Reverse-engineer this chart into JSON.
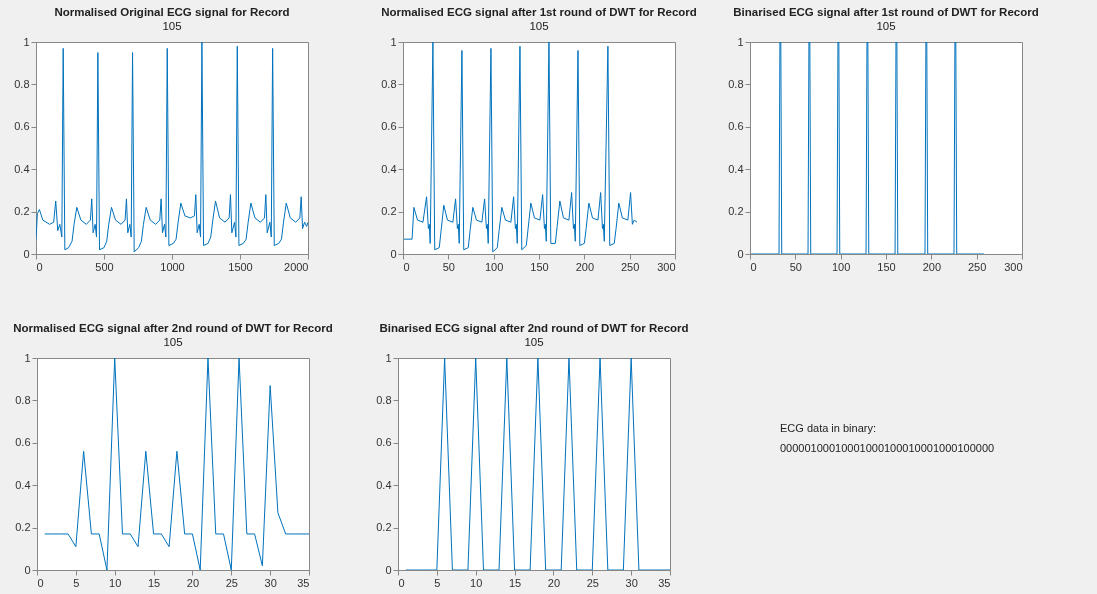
{
  "chart_data": [
    {
      "type": "line",
      "title": "Normalised Original ECG signal for Record",
      "subtitle": "105",
      "xlim": [
        0,
        2000
      ],
      "xticks": [
        0,
        500,
        1000,
        1500,
        2000
      ],
      "ylim": [
        0,
        1
      ],
      "yticks": [
        0,
        0.2,
        0.4,
        0.6,
        0.8,
        1
      ],
      "grid": false,
      "marker": "none",
      "line_style": "solid",
      "series": [
        {
          "color": "#0072bd",
          "x": [
            0,
            10,
            25,
            50,
            100,
            130,
            145,
            160,
            175,
            190,
            200,
            212,
            240,
            265,
            280,
            300,
            330,
            370,
            400,
            410,
            420,
            435,
            445,
            455,
            467,
            500,
            520,
            535,
            555,
            585,
            625,
            655,
            665,
            675,
            690,
            700,
            710,
            722,
            755,
            775,
            790,
            810,
            840,
            880,
            910,
            920,
            930,
            945,
            955,
            965,
            977,
            1010,
            1030,
            1045,
            1065,
            1095,
            1135,
            1165,
            1175,
            1185,
            1200,
            1210,
            1220,
            1232,
            1265,
            1285,
            1300,
            1320,
            1350,
            1390,
            1420,
            1430,
            1440,
            1460,
            1470,
            1480,
            1492,
            1525,
            1545,
            1560,
            1580,
            1610,
            1650,
            1680,
            1690,
            1700,
            1720,
            1730,
            1740,
            1752,
            1785,
            1805,
            1820,
            1840,
            1870,
            1910,
            1940,
            1950,
            1960,
            1975,
            1990,
            2000
          ],
          "values": [
            0.07,
            0.19,
            0.21,
            0.16,
            0.14,
            0.15,
            0.25,
            0.11,
            0.14,
            0.08,
            0.97,
            0.02,
            0.03,
            0.06,
            0.14,
            0.22,
            0.16,
            0.14,
            0.16,
            0.26,
            0.1,
            0.14,
            0.08,
            0.95,
            0.02,
            0.03,
            0.06,
            0.14,
            0.22,
            0.16,
            0.14,
            0.16,
            0.26,
            0.1,
            0.14,
            0.08,
            0.95,
            0.01,
            0.03,
            0.06,
            0.14,
            0.22,
            0.16,
            0.14,
            0.16,
            0.26,
            0.1,
            0.14,
            0.08,
            0.97,
            0.04,
            0.05,
            0.07,
            0.15,
            0.24,
            0.18,
            0.17,
            0.18,
            0.28,
            0.1,
            0.14,
            0.08,
            1.0,
            0.04,
            0.05,
            0.08,
            0.16,
            0.25,
            0.17,
            0.15,
            0.17,
            0.28,
            0.1,
            0.15,
            0.08,
            0.98,
            0.04,
            0.05,
            0.07,
            0.15,
            0.24,
            0.17,
            0.15,
            0.17,
            0.28,
            0.1,
            0.15,
            0.08,
            0.97,
            0.04,
            0.05,
            0.07,
            0.15,
            0.24,
            0.17,
            0.15,
            0.17,
            0.27,
            0.12,
            0.15,
            0.13,
            0.15
          ]
        }
      ]
    },
    {
      "type": "line",
      "title": "Normalised ECG signal after 1st round of DWT for Record",
      "subtitle": "105",
      "xlim": [
        0,
        300
      ],
      "xticks": [
        0,
        50,
        100,
        150,
        200,
        250,
        300
      ],
      "ylim": [
        0,
        1
      ],
      "yticks": [
        0,
        0.2,
        0.4,
        0.6,
        0.8,
        1
      ],
      "grid": false,
      "marker": "none",
      "line_style": "solid",
      "series": [
        {
          "color": "#0072bd",
          "x": [
            1,
            10,
            12,
            16,
            22,
            26,
            28,
            29,
            30,
            33,
            35,
            40,
            42,
            45,
            49,
            55,
            58,
            60,
            61,
            62,
            65,
            67,
            72,
            74,
            77,
            81,
            87,
            90,
            92,
            93,
            94,
            97,
            99,
            104,
            106,
            109,
            113,
            119,
            122,
            124,
            125,
            126,
            129,
            131,
            136,
            138,
            141,
            145,
            151,
            154,
            156,
            157,
            158,
            161,
            163,
            168,
            170,
            173,
            177,
            183,
            186,
            188,
            189,
            190,
            193,
            195,
            200,
            202,
            205,
            209,
            215,
            218,
            220,
            221,
            222,
            226,
            228,
            233,
            235,
            238,
            242,
            248,
            251,
            253,
            255,
            258
          ],
          "values": [
            0.07,
            0.07,
            0.22,
            0.16,
            0.15,
            0.27,
            0.12,
            0.14,
            0.05,
            1.0,
            0.02,
            0.03,
            0.11,
            0.23,
            0.16,
            0.15,
            0.26,
            0.12,
            0.14,
            0.05,
            0.96,
            0.02,
            0.03,
            0.11,
            0.22,
            0.16,
            0.15,
            0.26,
            0.12,
            0.14,
            0.05,
            0.97,
            0.01,
            0.03,
            0.11,
            0.22,
            0.16,
            0.15,
            0.27,
            0.12,
            0.14,
            0.05,
            0.98,
            0.02,
            0.04,
            0.12,
            0.24,
            0.17,
            0.16,
            0.28,
            0.12,
            0.14,
            0.06,
            1.0,
            0.05,
            0.05,
            0.13,
            0.25,
            0.17,
            0.16,
            0.29,
            0.12,
            0.14,
            0.06,
            0.96,
            0.04,
            0.05,
            0.12,
            0.24,
            0.17,
            0.16,
            0.29,
            0.12,
            0.14,
            0.06,
            0.98,
            0.04,
            0.05,
            0.12,
            0.24,
            0.17,
            0.16,
            0.29,
            0.14,
            0.16,
            0.15
          ]
        }
      ]
    },
    {
      "type": "line",
      "title": "Binarised ECG signal after 1st round of DWT for Record",
      "subtitle": "105",
      "xlim": [
        0,
        300
      ],
      "xticks": [
        0,
        50,
        100,
        150,
        200,
        250,
        300
      ],
      "ylim": [
        0,
        1
      ],
      "yticks": [
        0,
        0.2,
        0.4,
        0.6,
        0.8,
        1
      ],
      "grid": false,
      "marker": "none",
      "line_style": "solid",
      "series": [
        {
          "color": "#0072bd",
          "x": [
            1,
            32,
            33,
            34,
            35,
            64,
            65,
            66,
            67,
            96,
            97,
            98,
            99,
            128,
            129,
            130,
            131,
            160,
            161,
            162,
            163,
            193,
            194,
            195,
            196,
            225,
            226,
            227,
            228,
            258
          ],
          "values": [
            0,
            0,
            1,
            1,
            0,
            0,
            1,
            1,
            0,
            0,
            1,
            1,
            0,
            0,
            1,
            1,
            0,
            0,
            1,
            1,
            0,
            0,
            1,
            1,
            0,
            0,
            1,
            1,
            0,
            0
          ]
        }
      ]
    },
    {
      "type": "line",
      "title": "Normalised ECG signal after 2nd round of DWT for Record",
      "subtitle": "105",
      "xlim": [
        0,
        35
      ],
      "xticks": [
        0,
        5,
        10,
        15,
        20,
        25,
        30,
        35
      ],
      "ylim": [
        0,
        1
      ],
      "yticks": [
        0,
        0.2,
        0.4,
        0.6,
        0.8,
        1
      ],
      "grid": false,
      "marker": "none",
      "line_style": "solid",
      "series": [
        {
          "color": "#0072bd",
          "x": [
            1,
            2,
            3,
            4,
            5,
            6,
            7,
            8,
            9,
            10,
            11,
            12,
            13,
            14,
            15,
            16,
            17,
            18,
            19,
            20,
            21,
            22,
            23,
            24,
            25,
            26,
            27,
            28,
            29,
            30,
            31,
            32,
            33,
            34,
            35
          ],
          "values": [
            0.17,
            0.17,
            0.17,
            0.17,
            0.11,
            0.56,
            0.17,
            0.17,
            0,
            1,
            0.17,
            0.17,
            0.11,
            0.56,
            0.17,
            0.17,
            0.11,
            0.56,
            0.17,
            0.17,
            0,
            1,
            0.17,
            0.17,
            0,
            1,
            0.17,
            0.17,
            0.02,
            0.87,
            0.27,
            0.17,
            0.17,
            0.17,
            0.17
          ]
        }
      ]
    },
    {
      "type": "line",
      "title": "Binarised ECG signal after 2nd round of DWT for Record",
      "subtitle": "105",
      "xlim": [
        0,
        35
      ],
      "xticks": [
        0,
        5,
        10,
        15,
        20,
        25,
        30,
        35
      ],
      "ylim": [
        0,
        1
      ],
      "yticks": [
        0,
        0.2,
        0.4,
        0.6,
        0.8,
        1
      ],
      "grid": false,
      "marker": "none",
      "line_style": "solid",
      "series": [
        {
          "color": "#0072bd",
          "x": [
            1,
            2,
            3,
            4,
            5,
            6,
            7,
            8,
            9,
            10,
            11,
            12,
            13,
            14,
            15,
            16,
            17,
            18,
            19,
            20,
            21,
            22,
            23,
            24,
            25,
            26,
            27,
            28,
            29,
            30,
            31,
            32,
            33,
            34,
            35
          ],
          "values": [
            0,
            0,
            0,
            0,
            0,
            1,
            0,
            0,
            0,
            1,
            0,
            0,
            0,
            1,
            0,
            0,
            0,
            1,
            0,
            0,
            0,
            1,
            0,
            0,
            0,
            1,
            0,
            0,
            0,
            1,
            0,
            0,
            0,
            0,
            0
          ]
        }
      ]
    },
    {
      "type": "other",
      "title": "ECG data in binary:",
      "annotations": [
        "00000100010001000100010001000100000"
      ]
    }
  ]
}
